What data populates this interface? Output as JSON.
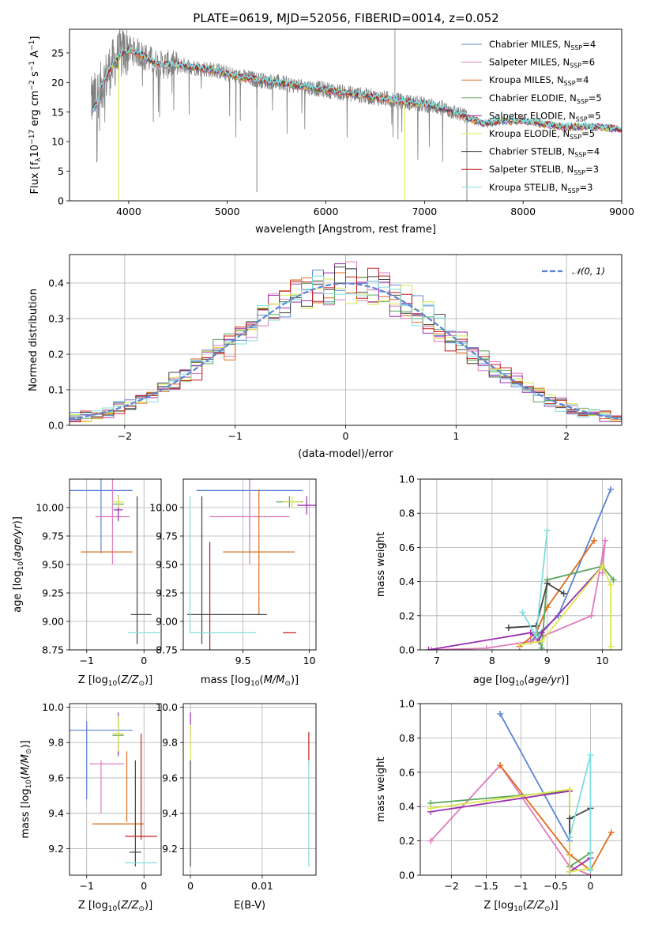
{
  "figure": {
    "title": "PLATE=0619, MJD=52056, FIBERID=0014, z=0.052"
  },
  "legend": [
    {
      "label": "Chabrier MILES, N",
      "sub": "SSP",
      "suffix": "=4",
      "color": "#5b84d6"
    },
    {
      "label": "Salpeter MILES, N",
      "sub": "SSP",
      "suffix": "=6",
      "color": "#e07bbd"
    },
    {
      "label": "Kroupa MILES, N",
      "sub": "SSP",
      "suffix": "=4",
      "color": "#e06d1a"
    },
    {
      "label": "Chabrier ELODIE, N",
      "sub": "SSP",
      "suffix": "=5",
      "color": "#58a55c"
    },
    {
      "label": "Salpeter ELODIE, N",
      "sub": "SSP",
      "suffix": "=5",
      "color": "#9b2fae"
    },
    {
      "label": "Kroupa ELODIE, N",
      "sub": "SSP",
      "suffix": "=5",
      "color": "#d9e84a"
    },
    {
      "label": "Chabrier STELIB, N",
      "sub": "SSP",
      "suffix": "=4",
      "color": "#444444"
    },
    {
      "label": "Salpeter STELIB, N",
      "sub": "SSP",
      "suffix": "=3",
      "color": "#c41e1e"
    },
    {
      "label": "Kroupa STELIB, N",
      "sub": "SSP",
      "suffix": "=3",
      "color": "#7fdde0"
    }
  ],
  "chart_data": [
    {
      "type": "line",
      "id": "spectrum",
      "xlabel": "wavelength [Angstrom, rest frame]",
      "ylabel_parts": [
        "Flux [f",
        "λ",
        "10",
        "−17",
        " erg cm",
        "−2",
        " s",
        "−1",
        " A",
        "−1",
        "]"
      ],
      "xlim": [
        3400,
        9000
      ],
      "ylim": [
        0,
        29
      ],
      "xticks": [
        4000,
        5000,
        6000,
        7000,
        8000,
        9000
      ],
      "yticks": [
        0,
        5,
        10,
        15,
        20,
        25
      ],
      "data_color": "#808080",
      "continuum": {
        "x": [
          3620,
          3700,
          3800,
          3900,
          4000,
          4100,
          4200,
          4300,
          4400,
          4500,
          4700,
          4900,
          5100,
          5300,
          5500,
          5700,
          5900,
          6100,
          6300,
          6500,
          6700,
          6900,
          7100,
          7300,
          7450
        ],
        "y": [
          16.5,
          18.5,
          22.0,
          24.5,
          25.5,
          25.0,
          24.0,
          23.0,
          23.0,
          23.0,
          22.5,
          22.0,
          21.0,
          20.5,
          20.0,
          19.5,
          19.0,
          18.5,
          18.0,
          17.5,
          17.0,
          16.5,
          16.0,
          15.0,
          14.0
        ],
        "red_x": [
          7450,
          7600,
          7800,
          8000,
          8200,
          8400,
          8600,
          8800,
          9000
        ],
        "red_y": [
          14.0,
          13.0,
          13.5,
          13.5,
          13.0,
          12.5,
          12.5,
          12.5,
          12.0
        ]
      },
      "spikes": [
        {
          "x": 3900,
          "y": 0
        },
        {
          "x": 5300,
          "y": 1.5
        },
        {
          "x": 6800,
          "y": 0
        },
        {
          "x": 7430,
          "y": 0
        }
      ]
    },
    {
      "type": "histogram",
      "id": "residuals",
      "xlabel": "(data-model)/error",
      "ylabel": "Normed distribution",
      "xlim": [
        -2.5,
        2.5
      ],
      "ylim": [
        0,
        0.48
      ],
      "xticks": [
        -2,
        -1,
        0,
        1,
        2
      ],
      "yticks": [
        0.0,
        0.1,
        0.2,
        0.3,
        0.4
      ],
      "bins": 50,
      "legend": "𝒩(0, 1)",
      "gaussian_color": "#5b84d6"
    },
    {
      "type": "scatter",
      "id": "age-vs-Z",
      "xlabel": "Z [log",
      "ylabel": "age  [log",
      "xlim": [
        -1.3,
        0.3
      ],
      "ylim": [
        8.75,
        10.25
      ],
      "xticks": [
        -1,
        0
      ],
      "yticks": [
        8.75,
        9.0,
        9.25,
        9.5,
        9.75,
        10.0
      ],
      "points": [
        {
          "x": -0.75,
          "y": 10.15,
          "xe": 0.55,
          "ye": 0.55,
          "c": 0
        },
        {
          "x": -0.55,
          "y": 9.92,
          "xe": 0.3,
          "ye": 0.42,
          "c": 1
        },
        {
          "x": -0.65,
          "y": 9.61,
          "xe": 0.45,
          "ye": 0.0,
          "c": 2
        },
        {
          "x": -0.45,
          "y": 10.03,
          "xe": 0.1,
          "ye": 0.08,
          "c": 3
        },
        {
          "x": -0.45,
          "y": 9.98,
          "xe": 0.08,
          "ye": 0.1,
          "c": 4
        },
        {
          "x": -0.45,
          "y": 10.05,
          "xe": 0.1,
          "ye": 0.05,
          "c": 5
        },
        {
          "x": -0.05,
          "y": 9.06,
          "xe": 0.18,
          "ye": 0.0,
          "c": 6
        },
        {
          "x": -0.12,
          "y": 9.45,
          "xe": 0.0,
          "ye": 0.65,
          "c": 6
        },
        {
          "x": -0.1,
          "y": 8.9,
          "xe": 0.0,
          "ye": 0.0,
          "c": 7
        },
        {
          "x": 0.0,
          "y": 8.9,
          "xe": 0.28,
          "ye": 0.0,
          "c": 8
        }
      ]
    },
    {
      "type": "scatter",
      "id": "age-vs-mass",
      "xlabel": "mass [log",
      "xlim": [
        9.05,
        10.05
      ],
      "ylim": [
        8.75,
        10.25
      ],
      "xticks": [
        9.5,
        10.0
      ],
      "yticks": [
        8.75,
        9.0,
        9.25,
        9.5,
        9.75,
        10.0
      ],
      "points": [
        {
          "x": 9.55,
          "y": 10.15,
          "xe": 0.4,
          "ye": 0.55,
          "c": 0
        },
        {
          "x": 9.55,
          "y": 9.92,
          "xe": 0.3,
          "ye": 0.42,
          "c": 1
        },
        {
          "x": 9.62,
          "y": 9.61,
          "xe": 0.27,
          "ye": 0.55,
          "c": 2
        },
        {
          "x": 9.85,
          "y": 10.05,
          "xe": 0.1,
          "ye": 0.05,
          "c": 3
        },
        {
          "x": 9.98,
          "y": 10.02,
          "xe": 0.07,
          "ye": 0.08,
          "c": 4
        },
        {
          "x": 9.87,
          "y": 10.05,
          "xe": 0.07,
          "ye": 0.05,
          "c": 5
        },
        {
          "x": 9.38,
          "y": 9.06,
          "xe": 0.3,
          "ye": 0.0,
          "c": 6
        },
        {
          "x": 9.19,
          "y": 9.45,
          "xe": 0.0,
          "ye": 0.65,
          "c": 6
        },
        {
          "x": 9.25,
          "y": 8.9,
          "xe": 0.0,
          "ye": 0.8,
          "c": 7
        },
        {
          "x": 9.85,
          "y": 8.9,
          "xe": 0.05,
          "ye": 0.0,
          "c": 7
        },
        {
          "x": 9.35,
          "y": 8.9,
          "xe": 0.25,
          "ye": 0.0,
          "c": 8
        },
        {
          "x": 9.1,
          "y": 9.5,
          "xe": 0.0,
          "ye": 0.6,
          "c": 8
        }
      ]
    },
    {
      "type": "line",
      "id": "weight-vs-age",
      "xlabel": "age  [log",
      "ylabel": "mass weight",
      "xlim": [
        6.7,
        10.35
      ],
      "ylim": [
        0,
        1.0
      ],
      "xticks": [
        7,
        8,
        9,
        10
      ],
      "yticks": [
        0.0,
        0.2,
        0.4,
        0.6,
        0.8,
        1.0
      ],
      "series": [
        {
          "c": 0,
          "x": [
            8.7,
            9.2,
            10.15
          ],
          "y": [
            0.05,
            0.2,
            0.94
          ]
        },
        {
          "c": 1,
          "x": [
            6.9,
            7.9,
            8.7,
            9.8,
            10.05,
            10.0
          ],
          "y": [
            0.0,
            0.01,
            0.05,
            0.2,
            0.64,
            0.45
          ]
        },
        {
          "c": 2,
          "x": [
            8.5,
            8.8,
            9.0,
            9.85
          ],
          "y": [
            0.02,
            0.1,
            0.25,
            0.64
          ]
        },
        {
          "c": 3,
          "x": [
            8.3,
            8.8,
            8.9,
            9.0,
            10.0,
            10.2
          ],
          "y": [
            0.13,
            0.14,
            0.01,
            0.41,
            0.49,
            0.41
          ]
        },
        {
          "c": 4,
          "x": [
            6.85,
            8.7,
            8.85,
            8.9,
            10.0
          ],
          "y": [
            0.0,
            0.1,
            0.05,
            0.1,
            0.49
          ]
        },
        {
          "c": 5,
          "x": [
            8.5,
            8.9,
            10.0,
            10.15,
            10.15
          ],
          "y": [
            0.03,
            0.05,
            0.49,
            0.38,
            0.02
          ]
        },
        {
          "c": 6,
          "x": [
            8.3,
            8.8,
            9.0,
            9.3
          ],
          "y": [
            0.13,
            0.14,
            0.39,
            0.33
          ]
        },
        {
          "c": 8,
          "x": [
            8.55,
            8.8,
            9.0
          ],
          "y": [
            0.22,
            0.08,
            0.7
          ]
        }
      ]
    },
    {
      "type": "scatter",
      "id": "mass-vs-Z",
      "xlabel": "Z [log",
      "ylabel": "mass [log",
      "xlim": [
        -1.3,
        0.3
      ],
      "ylim": [
        9.05,
        10.02
      ],
      "xticks": [
        -1,
        0
      ],
      "yticks": [
        9.2,
        9.4,
        9.6,
        9.8,
        10.0
      ],
      "points": [
        {
          "x": -0.75,
          "y": 9.87,
          "xe": 0.55,
          "ye": 0.0,
          "c": 0
        },
        {
          "x": -1.0,
          "y": 9.7,
          "xe": 0.0,
          "ye": 0.22,
          "c": 0
        },
        {
          "x": -0.65,
          "y": 9.68,
          "xe": 0.3,
          "ye": 0.0,
          "c": 1
        },
        {
          "x": -0.75,
          "y": 9.55,
          "xe": 0.0,
          "ye": 0.15,
          "c": 1
        },
        {
          "x": -0.45,
          "y": 9.34,
          "xe": 0.45,
          "ye": 0.0,
          "c": 2
        },
        {
          "x": -0.3,
          "y": 9.55,
          "xe": 0.0,
          "ye": 0.2,
          "c": 2
        },
        {
          "x": -0.45,
          "y": 9.84,
          "xe": 0.1,
          "ye": 0.12,
          "c": 3
        },
        {
          "x": -0.45,
          "y": 9.85,
          "xe": 0.08,
          "ye": 0.12,
          "c": 4
        },
        {
          "x": -0.45,
          "y": 9.85,
          "xe": 0.1,
          "ye": 0.1,
          "c": 5
        },
        {
          "x": -0.15,
          "y": 9.4,
          "xe": 0.0,
          "ye": 0.3,
          "c": 6
        },
        {
          "x": -0.15,
          "y": 9.18,
          "xe": 0.1,
          "ye": 0.0,
          "c": 6
        },
        {
          "x": -0.05,
          "y": 9.27,
          "xe": 0.28,
          "ye": 0.0,
          "c": 7
        },
        {
          "x": -0.05,
          "y": 9.55,
          "xe": 0.0,
          "ye": 0.3,
          "c": 7
        },
        {
          "x": -0.05,
          "y": 9.12,
          "xe": 0.28,
          "ye": 0.0,
          "c": 8
        }
      ]
    },
    {
      "type": "scatter",
      "id": "mass-vs-EBV",
      "xlabel": "E(B-V)",
      "xlim": [
        -0.001,
        0.0175
      ],
      "ylim": [
        9.05,
        10.02
      ],
      "xticks": [
        0.0,
        0.01
      ],
      "yticks": [
        9.2,
        9.4,
        9.6,
        9.8,
        10.0
      ],
      "points": [
        {
          "x": 0.0,
          "y": 9.87,
          "xe": 0.0,
          "ye": 0.1,
          "c": 4
        },
        {
          "x": 0.0,
          "y": 9.8,
          "xe": 0.0,
          "ye": 0.1,
          "c": 5
        },
        {
          "x": 0.0,
          "y": 9.4,
          "xe": 0.0,
          "ye": 0.3,
          "c": 6
        },
        {
          "x": 0.0165,
          "y": 9.78,
          "xe": 0.0,
          "ye": 0.08,
          "c": 7
        },
        {
          "x": 0.0165,
          "y": 9.4,
          "xe": 0.0,
          "ye": 0.3,
          "c": 8
        }
      ]
    },
    {
      "type": "line",
      "id": "weight-vs-Z",
      "xlabel": "Z [log",
      "ylabel": "mass weight",
      "xlim": [
        -2.45,
        0.45
      ],
      "ylim": [
        0,
        1.0
      ],
      "xticks": [
        -2.0,
        -1.5,
        -1.0,
        -0.5,
        0.0
      ],
      "yticks": [
        0.0,
        0.2,
        0.4,
        0.6,
        0.8,
        1.0
      ],
      "series": [
        {
          "c": 0,
          "x": [
            -1.3,
            -0.3
          ],
          "y": [
            0.94,
            0.2
          ]
        },
        {
          "c": 1,
          "x": [
            -2.3,
            -1.3,
            -0.3,
            0.0
          ],
          "y": [
            0.2,
            0.64,
            0.05,
            0.0
          ]
        },
        {
          "c": 2,
          "x": [
            -1.3,
            -0.3,
            0.0,
            0.3
          ],
          "y": [
            0.64,
            0.12,
            0.03,
            0.25
          ]
        },
        {
          "c": 3,
          "x": [
            -2.3,
            -0.3,
            -0.3,
            0.0
          ],
          "y": [
            0.42,
            0.49,
            0.05,
            0.13
          ]
        },
        {
          "c": 4,
          "x": [
            -2.3,
            -0.3,
            -0.3,
            0.0
          ],
          "y": [
            0.37,
            0.49,
            0.02,
            0.1
          ]
        },
        {
          "c": 5,
          "x": [
            -2.3,
            -0.3,
            -0.3,
            0.0
          ],
          "y": [
            0.39,
            0.5,
            0.02,
            0.04
          ]
        },
        {
          "c": 6,
          "x": [
            -0.3,
            -0.3,
            0.0
          ],
          "y": [
            0.22,
            0.33,
            0.39
          ]
        },
        {
          "c": 8,
          "x": [
            -0.3,
            0.0,
            0.0
          ],
          "y": [
            0.22,
            0.7,
            0.03
          ]
        }
      ]
    }
  ]
}
